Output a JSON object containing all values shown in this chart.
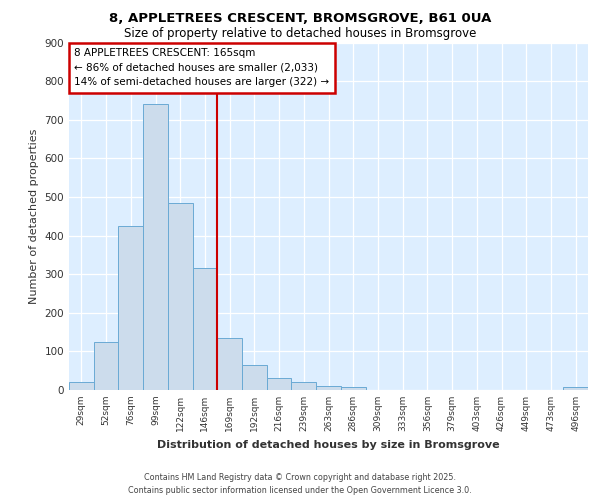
{
  "title_line1": "8, APPLETREES CRESCENT, BROMSGROVE, B61 0UA",
  "title_line2": "Size of property relative to detached houses in Bromsgrove",
  "xlabel": "Distribution of detached houses by size in Bromsgrove",
  "ylabel": "Number of detached properties",
  "bin_labels": [
    "29sqm",
    "52sqm",
    "76sqm",
    "99sqm",
    "122sqm",
    "146sqm",
    "169sqm",
    "192sqm",
    "216sqm",
    "239sqm",
    "263sqm",
    "286sqm",
    "309sqm",
    "333sqm",
    "356sqm",
    "379sqm",
    "403sqm",
    "426sqm",
    "449sqm",
    "473sqm",
    "496sqm"
  ],
  "bar_heights": [
    20,
    125,
    425,
    740,
    485,
    315,
    135,
    65,
    30,
    20,
    10,
    8,
    0,
    0,
    0,
    0,
    0,
    0,
    0,
    0,
    8
  ],
  "bar_color": "#ccdcec",
  "bar_edge_color": "#6aaad4",
  "red_line_index": 6,
  "annotation_text": "8 APPLETREES CRESCENT: 165sqm\n← 86% of detached houses are smaller (2,033)\n14% of semi-detached houses are larger (322) →",
  "annotation_box_facecolor": "#ffffff",
  "annotation_box_edgecolor": "#cc0000",
  "ylim": [
    0,
    900
  ],
  "yticks": [
    0,
    100,
    200,
    300,
    400,
    500,
    600,
    700,
    800,
    900
  ],
  "plot_bg_color": "#ddeeff",
  "grid_color": "#ffffff",
  "fig_bg_color": "#ffffff",
  "footer_line1": "Contains HM Land Registry data © Crown copyright and database right 2025.",
  "footer_line2": "Contains public sector information licensed under the Open Government Licence 3.0."
}
